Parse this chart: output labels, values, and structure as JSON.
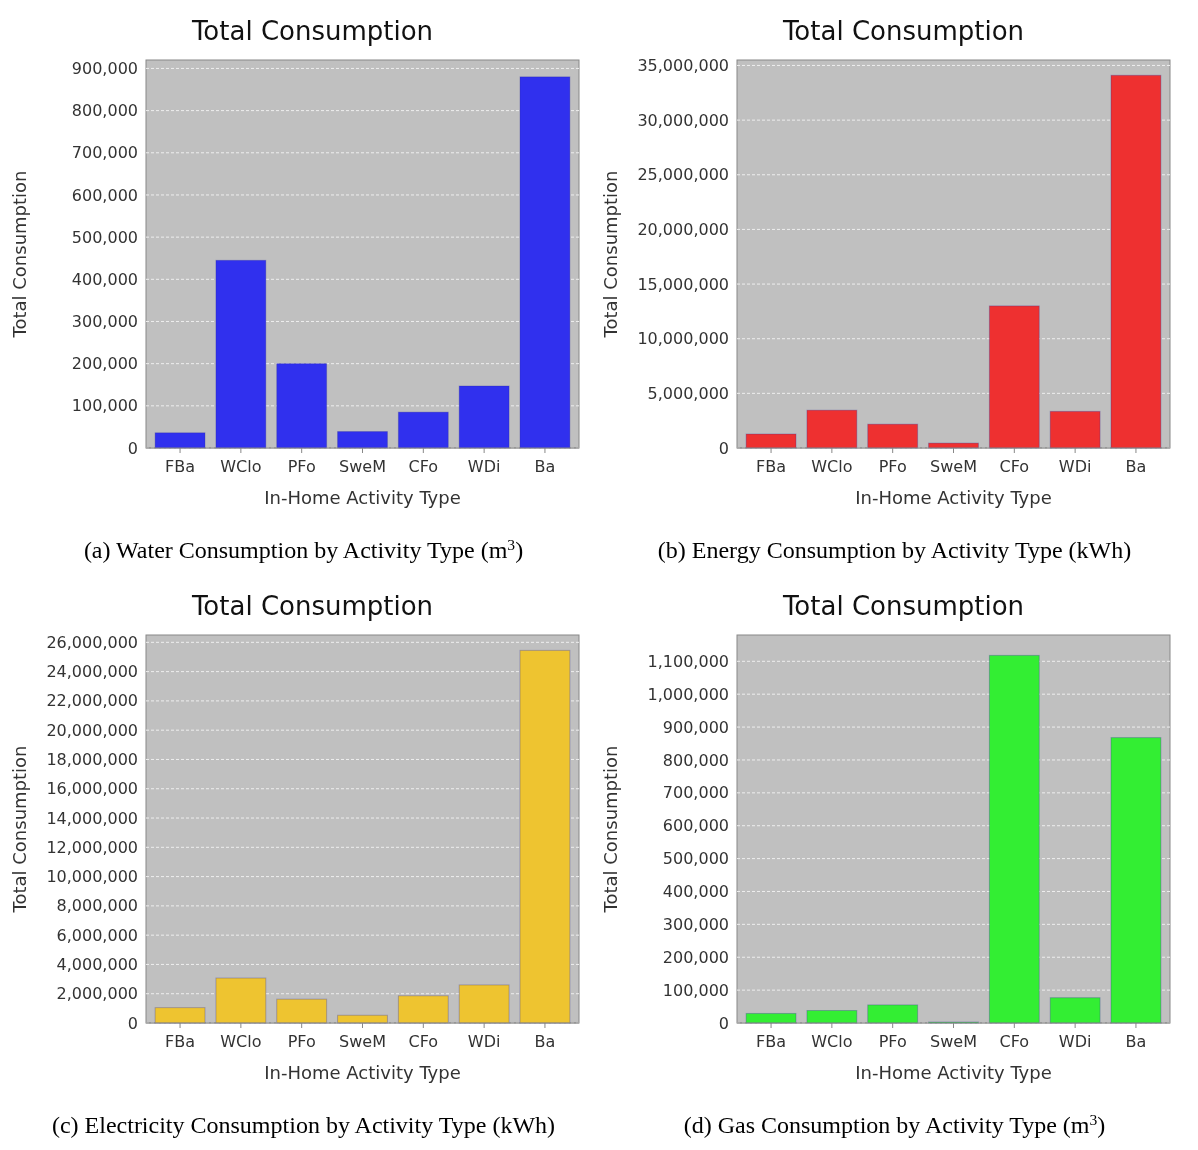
{
  "chart_data": [
    {
      "type": "bar",
      "title": "Total Consumption",
      "xlabel": "In-Home Activity Type",
      "ylabel": "Total Consumption",
      "categories": [
        "FBa",
        "WClo",
        "PFo",
        "SweM",
        "CFo",
        "WDi",
        "Ba"
      ],
      "values": [
        36000,
        445000,
        200000,
        39000,
        85000,
        147000,
        880000
      ],
      "color": "#3030ee",
      "ylim": [
        0,
        920000
      ],
      "yticks": [
        {
          "value": 0,
          "label": "0"
        },
        {
          "value": 100000,
          "label": "100,000"
        },
        {
          "value": 200000,
          "label": "200,000"
        },
        {
          "value": 300000,
          "label": "300,000"
        },
        {
          "value": 400000,
          "label": "400,000"
        },
        {
          "value": 500000,
          "label": "500,000"
        },
        {
          "value": 600000,
          "label": "600,000"
        },
        {
          "value": 700000,
          "label": "700,000"
        },
        {
          "value": 800000,
          "label": "800,000"
        },
        {
          "value": 900000,
          "label": "900,000"
        }
      ],
      "grid": "y",
      "annotations": [
        "(a) Water Consumption by Activity Type (m$^{3}$)"
      ]
    },
    {
      "type": "bar",
      "title": "Total Consumption",
      "xlabel": "In-Home Activity Type",
      "ylabel": "Total Consumption",
      "categories": [
        "FBa",
        "WClo",
        "PFo",
        "SweM",
        "CFo",
        "WDi",
        "Ba"
      ],
      "values": [
        1280000,
        3460000,
        2180000,
        450000,
        13000000,
        3350000,
        34100000
      ],
      "color": "#ee3030",
      "ylim": [
        0,
        35500000
      ],
      "yticks": [
        {
          "value": 0,
          "label": "0"
        },
        {
          "value": 5000000,
          "label": "5,000,000"
        },
        {
          "value": 10000000,
          "label": "10,000,000"
        },
        {
          "value": 15000000,
          "label": "15,000,000"
        },
        {
          "value": 20000000,
          "label": "20,000,000"
        },
        {
          "value": 25000000,
          "label": "25,000,000"
        },
        {
          "value": 30000000,
          "label": "30,000,000"
        },
        {
          "value": 35000000,
          "label": "35,000,000"
        }
      ],
      "grid": "y",
      "annotations": [
        "(b) Energy Consumption by Activity Type (kWh)"
      ]
    },
    {
      "type": "bar",
      "title": "Total Consumption",
      "xlabel": "In-Home Activity Type",
      "ylabel": "Total Consumption",
      "categories": [
        "FBa",
        "WClo",
        "PFo",
        "SweM",
        "CFo",
        "WDi",
        "Ba"
      ],
      "values": [
        1050000,
        3070000,
        1630000,
        530000,
        1860000,
        2600000,
        25450000
      ],
      "color": "#eec430",
      "ylim": [
        0,
        26500000
      ],
      "yticks": [
        {
          "value": 0,
          "label": "0"
        },
        {
          "value": 2000000,
          "label": "2,000,000"
        },
        {
          "value": 4000000,
          "label": "4,000,000"
        },
        {
          "value": 6000000,
          "label": "6,000,000"
        },
        {
          "value": 8000000,
          "label": "8,000,000"
        },
        {
          "value": 10000000,
          "label": "10,000,000"
        },
        {
          "value": 12000000,
          "label": "12,000,000"
        },
        {
          "value": 14000000,
          "label": "14,000,000"
        },
        {
          "value": 16000000,
          "label": "16,000,000"
        },
        {
          "value": 18000000,
          "label": "18,000,000"
        },
        {
          "value": 20000000,
          "label": "20,000,000"
        },
        {
          "value": 22000000,
          "label": "22,000,000"
        },
        {
          "value": 24000000,
          "label": "24,000,000"
        },
        {
          "value": 26000000,
          "label": "26,000,000"
        }
      ],
      "grid": "y",
      "annotations": [
        "(c) Electricity Consumption by Activity Type (kWh)"
      ]
    },
    {
      "type": "bar",
      "title": "Total Consumption",
      "xlabel": "In-Home Activity Type",
      "ylabel": "Total Consumption",
      "categories": [
        "FBa",
        "WClo",
        "PFo",
        "SweM",
        "CFo",
        "WDi",
        "Ba"
      ],
      "values": [
        29000,
        38000,
        55000,
        3000,
        1118000,
        77000,
        868000
      ],
      "color": "#33ee33",
      "ylim": [
        0,
        1180000
      ],
      "yticks": [
        {
          "value": 0,
          "label": "0"
        },
        {
          "value": 100000,
          "label": "100,000"
        },
        {
          "value": 200000,
          "label": "200,000"
        },
        {
          "value": 300000,
          "label": "300,000"
        },
        {
          "value": 400000,
          "label": "400,000"
        },
        {
          "value": 500000,
          "label": "500,000"
        },
        {
          "value": 600000,
          "label": "600,000"
        },
        {
          "value": 700000,
          "label": "700,000"
        },
        {
          "value": 800000,
          "label": "800,000"
        },
        {
          "value": 900000,
          "label": "900,000"
        },
        {
          "value": 1000000,
          "label": "1,000,000"
        },
        {
          "value": 1100000,
          "label": "1,100,000"
        }
      ],
      "grid": "y",
      "annotations": [
        "(d) Gas Consumption by Activity Type (m$^{3}$)"
      ]
    }
  ]
}
